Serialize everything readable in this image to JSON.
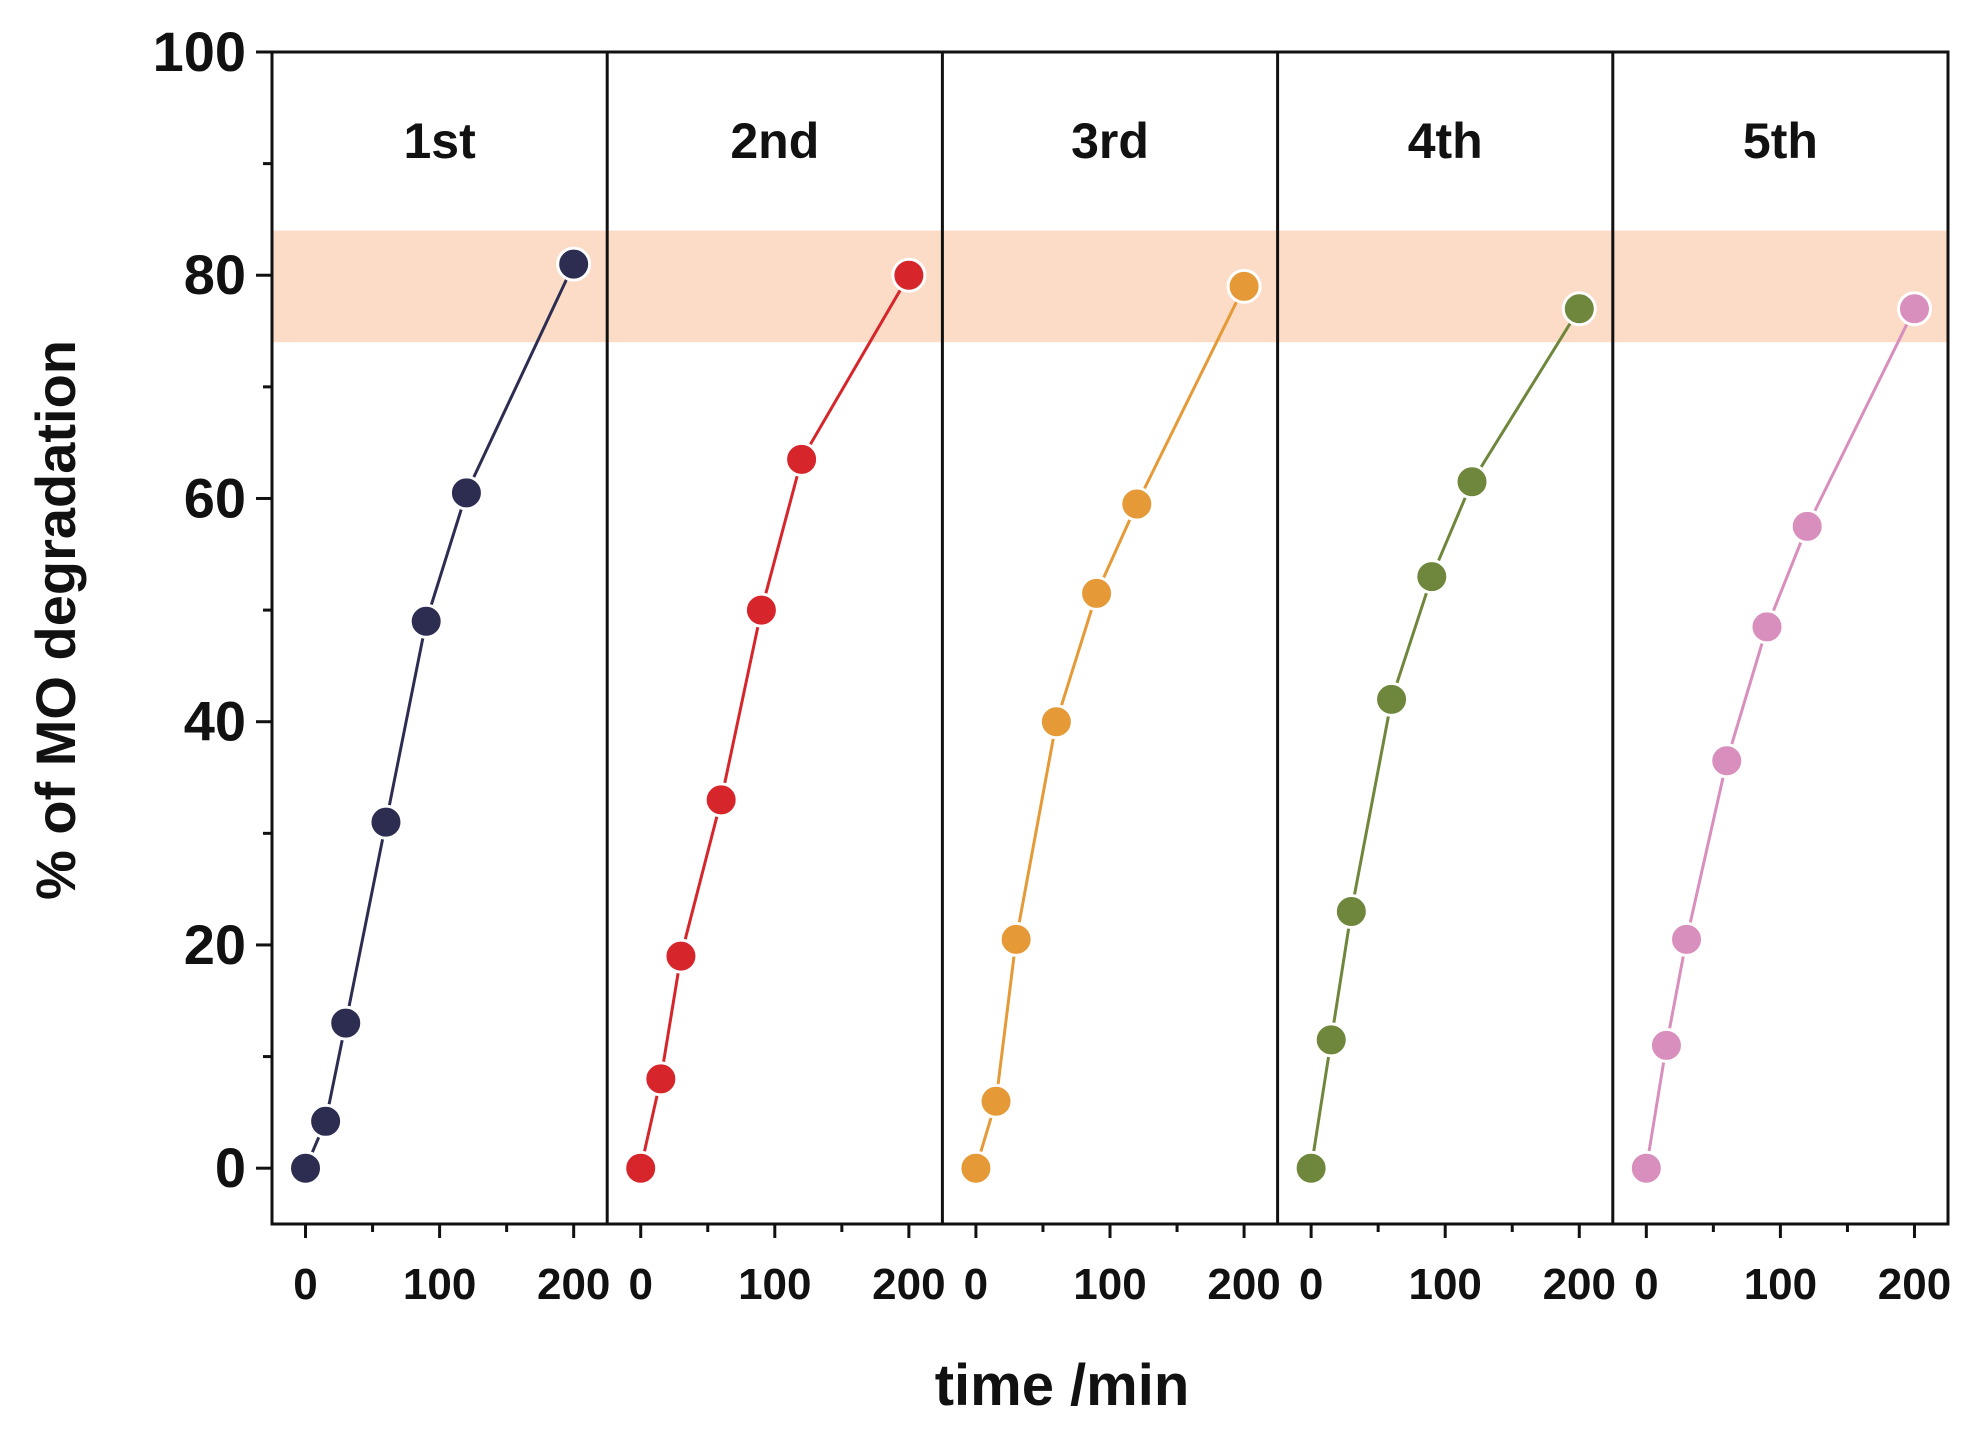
{
  "chart_data": {
    "type": "line",
    "xlabel": "time /min",
    "ylabel": "% of MO degradation",
    "ylim": [
      -5,
      100
    ],
    "y_ticks": [
      0,
      20,
      40,
      60,
      80,
      100
    ],
    "xlim": [
      -25,
      225
    ],
    "x_ticks": [
      0,
      100,
      200
    ],
    "highlight_band": {
      "y_range": [
        74,
        84
      ],
      "color": "#fcdcc6"
    },
    "panels": [
      {
        "label": "1st",
        "color": "#2d2d52",
        "x": [
          0,
          15,
          30,
          60,
          90,
          120,
          200
        ],
        "y": [
          0,
          4.2,
          13,
          31,
          49,
          60.5,
          81
        ]
      },
      {
        "label": "2nd",
        "color": "#d6262b",
        "x": [
          0,
          15,
          30,
          60,
          90,
          120,
          200
        ],
        "y": [
          0,
          8,
          19,
          33,
          50,
          63.5,
          80
        ]
      },
      {
        "label": "3rd",
        "color": "#e59a37",
        "x": [
          0,
          15,
          30,
          60,
          90,
          120,
          200
        ],
        "y": [
          0,
          6,
          20.5,
          40,
          51.5,
          59.5,
          79
        ]
      },
      {
        "label": "4th",
        "color": "#6f873c",
        "x": [
          0,
          15,
          30,
          60,
          90,
          120,
          200
        ],
        "y": [
          0,
          11.5,
          23,
          42,
          53,
          61.5,
          77
        ]
      },
      {
        "label": "5th",
        "color": "#d98fbd",
        "x": [
          0,
          15,
          30,
          60,
          90,
          120,
          200
        ],
        "y": [
          0,
          11,
          20.5,
          36.5,
          48.5,
          57.5,
          77
        ]
      }
    ]
  }
}
